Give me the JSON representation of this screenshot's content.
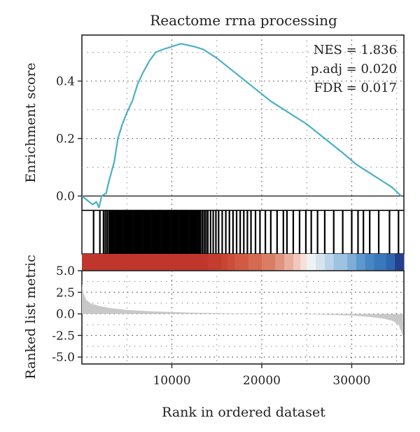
{
  "chart_data": {
    "type": "line",
    "title": "Reactome rrna processing",
    "xlabel": "Rank in ordered dataset",
    "x_ticks": [
      "10000",
      "20000",
      "30000"
    ],
    "x_tick_values": [
      10000,
      20000,
      30000
    ],
    "xlim": [
      0,
      35800
    ],
    "grid": true,
    "line_color": "#4ab0c4",
    "stats": {
      "nes": "NES = 1.836",
      "padj": "p.adj = 0.020",
      "fdr": "FDR = 0.017"
    },
    "es_panel": {
      "ylabel": "Enrichment score",
      "y_ticks": [
        "0.0",
        "0.2",
        "0.4"
      ],
      "y_tick_values": [
        0.0,
        0.2,
        0.4
      ],
      "ylim": [
        -0.05,
        0.56
      ],
      "series": [
        {
          "values": [
            [
              0,
              0.0
            ],
            [
              1200,
              -0.03
            ],
            [
              1600,
              -0.02
            ],
            [
              1900,
              -0.04
            ],
            [
              2200,
              0.0
            ],
            [
              2700,
              0.01
            ],
            [
              3000,
              0.05
            ],
            [
              3600,
              0.12
            ],
            [
              4000,
              0.2
            ],
            [
              4500,
              0.25
            ],
            [
              5000,
              0.29
            ],
            [
              5600,
              0.33
            ],
            [
              6200,
              0.39
            ],
            [
              6800,
              0.43
            ],
            [
              7500,
              0.47
            ],
            [
              8200,
              0.5
            ],
            [
              9000,
              0.51
            ],
            [
              10000,
              0.52
            ],
            [
              11000,
              0.53
            ],
            [
              12500,
              0.52
            ],
            [
              13500,
              0.51
            ],
            [
              15000,
              0.48
            ],
            [
              17000,
              0.43
            ],
            [
              19000,
              0.38
            ],
            [
              21000,
              0.33
            ],
            [
              23000,
              0.29
            ],
            [
              25000,
              0.25
            ],
            [
              27000,
              0.2
            ],
            [
              29000,
              0.15
            ],
            [
              30500,
              0.11
            ],
            [
              32000,
              0.08
            ],
            [
              33500,
              0.05
            ],
            [
              34500,
              0.03
            ],
            [
              35500,
              0.0
            ]
          ]
        }
      ]
    },
    "gene_hits": [
      1300,
      2000,
      2400,
      2600,
      2800,
      3000,
      3150,
      3300,
      3450,
      3600,
      3750,
      3900,
      4050,
      4200,
      4350,
      4500,
      4650,
      4800,
      4950,
      5100,
      5250,
      5400,
      5550,
      5700,
      5850,
      6000,
      6150,
      6300,
      6450,
      6600,
      6750,
      6900,
      7050,
      7200,
      7350,
      7500,
      7650,
      7800,
      7950,
      8100,
      8250,
      8400,
      8550,
      8700,
      8850,
      9000,
      9150,
      9300,
      9450,
      9600,
      9750,
      9900,
      10050,
      10200,
      10350,
      10500,
      10650,
      10800,
      10950,
      11100,
      11250,
      11400,
      11550,
      11700,
      11850,
      12000,
      12150,
      12300,
      12450,
      12600,
      12750,
      12900,
      13050,
      13200,
      13400,
      13600,
      13800,
      14000,
      14300,
      14600,
      14900,
      15200,
      15600,
      16000,
      16400,
      16800,
      17200,
      17600,
      18000,
      18400,
      18800,
      19300,
      19800,
      20400,
      21000,
      21700,
      22400,
      22800,
      23500,
      24200,
      24900,
      25500,
      26200,
      27000,
      28000,
      29000,
      30000,
      30700,
      31300,
      32000,
      33000,
      34200,
      35200
    ],
    "rank_colors": [
      "#c0362c",
      "#c0362c",
      "#c43b2f",
      "#c84433",
      "#cc4e3a",
      "#d05a44",
      "#d46a52",
      "#d97e65",
      "#e09480",
      "#e8ae9e",
      "#f0c8bc",
      "#f6e0d8",
      "#eef2f6",
      "#d6e4f0",
      "#bcd4ea",
      "#9ec2e2",
      "#7eaed8",
      "#5e98cc",
      "#4686c4",
      "#3a78bc",
      "#2f66b0",
      "#243f8c"
    ],
    "rank_color_stops": [
      0,
      10000,
      14000,
      15500,
      16200,
      17000,
      18500,
      20000,
      21500,
      22500,
      23500,
      24300,
      25000,
      26000,
      27000,
      28000,
      29500,
      30500,
      31500,
      32500,
      33800,
      34800
    ],
    "metric_panel": {
      "ylabel": "Ranked list metric",
      "y_ticks": [
        "5.0",
        "2.5",
        "0.0",
        "-2.5",
        "-5.0"
      ],
      "y_tick_values": [
        5.0,
        2.5,
        0.0,
        -2.5,
        -5.0
      ],
      "ylim": [
        -5.8,
        5.0
      ],
      "fill_color": "#c8c8c8",
      "series": [
        {
          "values": [
            [
              0,
              3.5
            ],
            [
              200,
              2.3
            ],
            [
              500,
              1.6
            ],
            [
              1000,
              1.2
            ],
            [
              2000,
              0.9
            ],
            [
              3000,
              0.7
            ],
            [
              5000,
              0.45
            ],
            [
              8000,
              0.28
            ],
            [
              12000,
              0.15
            ],
            [
              16000,
              0.07
            ],
            [
              20000,
              0.02
            ],
            [
              24000,
              -0.02
            ],
            [
              27000,
              -0.08
            ],
            [
              30000,
              -0.2
            ],
            [
              32000,
              -0.35
            ],
            [
              33500,
              -0.55
            ],
            [
              34500,
              -0.8
            ],
            [
              35200,
              -1.2
            ],
            [
              35700,
              -2.6
            ]
          ]
        }
      ]
    }
  }
}
